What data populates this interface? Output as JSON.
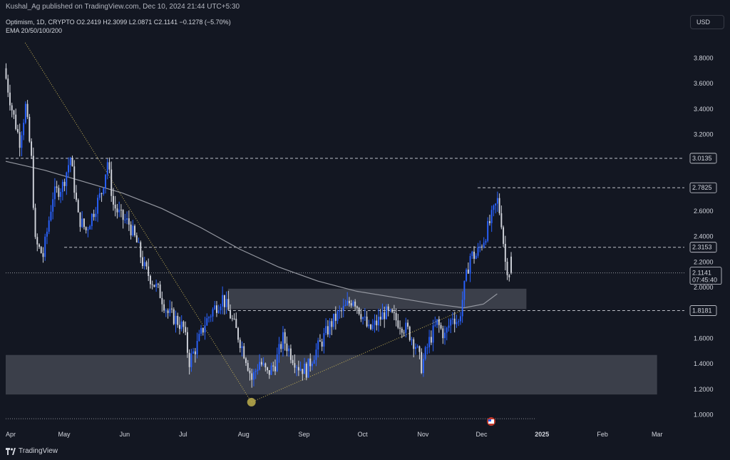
{
  "header": {
    "published": "Kushal_Ag published on TradingView.com, Dec 10, 2024 21:44 UTC+5:30",
    "symbol_line": "Optimism, 1D, CRYPTO  O2.2419  H2.3099  L2.0871  C2.1141  −0.1278 (−5.70%)",
    "indicator_line": "EMA 20/50/100/200",
    "currency": "USD"
  },
  "footer": {
    "brand": "TradingView"
  },
  "colors": {
    "background": "#131722",
    "up_candle": "#2962ff",
    "down_candle": "#d1d4dc",
    "zone": "#434651",
    "ema": "#9598a1",
    "trendline": "#c9b458"
  },
  "chart_data": {
    "type": "candlestick",
    "symbol": "Optimism",
    "interval": "1D",
    "ylim": [
      0.92,
      3.92
    ],
    "yticks": [
      {
        "v": 3.8,
        "label": "3.8000"
      },
      {
        "v": 3.6,
        "label": "3.6000"
      },
      {
        "v": 3.4,
        "label": "3.4000"
      },
      {
        "v": 3.2,
        "label": "3.2000"
      },
      {
        "v": 2.6,
        "label": "2.6000"
      },
      {
        "v": 2.4,
        "label": "2.4000"
      },
      {
        "v": 2.2,
        "label": "2.2000"
      },
      {
        "v": 2.0,
        "label": "2.0000"
      },
      {
        "v": 1.6,
        "label": "1.6000"
      },
      {
        "v": 1.4,
        "label": "1.4000"
      },
      {
        "v": 1.2,
        "label": "1.2000"
      },
      {
        "v": 1.0,
        "label": "1.0000"
      }
    ],
    "xticks": [
      {
        "d": 0,
        "label": "Apr"
      },
      {
        "d": 30,
        "label": "May"
      },
      {
        "d": 61,
        "label": "Jun"
      },
      {
        "d": 91,
        "label": "Jul"
      },
      {
        "d": 122,
        "label": "Aug"
      },
      {
        "d": 153,
        "label": "Sep"
      },
      {
        "d": 183,
        "label": "Oct"
      },
      {
        "d": 214,
        "label": "Nov"
      },
      {
        "d": 244,
        "label": "Dec"
      },
      {
        "d": 275,
        "label": "2025"
      },
      {
        "d": 306,
        "label": "Feb"
      },
      {
        "d": 334,
        "label": "Mar"
      }
    ],
    "xlim_days": [
      0,
      348
    ],
    "levels": [
      {
        "v": 3.0135,
        "label": "3.0135",
        "from_day": 0
      },
      {
        "v": 2.7825,
        "label": "2.7825",
        "from_day": 242
      },
      {
        "v": 2.3153,
        "label": "2.3153",
        "from_day": 30
      },
      {
        "v": 1.8181,
        "label": "1.8181",
        "from_day": 114
      },
      {
        "v": 0.97,
        "from_day": 0,
        "to_day": 272,
        "style": "dotted"
      }
    ],
    "price_label": {
      "v": 2.1141,
      "label": "2.1141",
      "countdown": "07:45:40"
    },
    "zones": [
      {
        "from_day": 114,
        "to_day": 267,
        "low": 1.83,
        "high": 1.99
      },
      {
        "from_day": 0,
        "to_day": 334,
        "low": 1.16,
        "high": 1.47
      }
    ],
    "trendlines": [
      {
        "d1": 10,
        "v1": 3.92,
        "d2": 126,
        "v2": 1.1,
        "style": "dotted"
      },
      {
        "d1": 126,
        "v1": 1.1,
        "d2": 234,
        "v2": 1.82,
        "style": "dotted"
      }
    ],
    "marker": {
      "day": 126,
      "v": 1.1
    },
    "ema_anchor_points": [
      [
        0,
        2.99
      ],
      [
        20,
        2.92
      ],
      [
        40,
        2.83
      ],
      [
        60,
        2.74
      ],
      [
        80,
        2.62
      ],
      [
        100,
        2.47
      ],
      [
        120,
        2.3
      ],
      [
        140,
        2.16
      ],
      [
        160,
        2.05
      ],
      [
        180,
        1.97
      ],
      [
        200,
        1.92
      ],
      [
        220,
        1.87
      ],
      [
        235,
        1.84
      ],
      [
        245,
        1.87
      ],
      [
        252,
        1.95
      ]
    ],
    "price_anchor_points": [
      [
        0,
        3.72
      ],
      [
        4,
        3.4
      ],
      [
        8,
        3.15
      ],
      [
        11,
        3.42
      ],
      [
        14,
        3.0
      ],
      [
        16,
        2.35
      ],
      [
        20,
        2.25
      ],
      [
        25,
        2.72
      ],
      [
        30,
        2.8
      ],
      [
        34,
        3.02
      ],
      [
        38,
        2.55
      ],
      [
        42,
        2.45
      ],
      [
        46,
        2.6
      ],
      [
        50,
        2.75
      ],
      [
        53,
        2.99
      ],
      [
        56,
        2.65
      ],
      [
        60,
        2.55
      ],
      [
        64,
        2.5
      ],
      [
        68,
        2.35
      ],
      [
        72,
        2.15
      ],
      [
        76,
        2.05
      ],
      [
        80,
        1.95
      ],
      [
        84,
        1.8
      ],
      [
        88,
        1.75
      ],
      [
        92,
        1.68
      ],
      [
        95,
        1.42
      ],
      [
        99,
        1.55
      ],
      [
        103,
        1.72
      ],
      [
        107,
        1.82
      ],
      [
        112,
        1.92
      ],
      [
        116,
        1.78
      ],
      [
        120,
        1.62
      ],
      [
        124,
        1.45
      ],
      [
        127,
        1.28
      ],
      [
        131,
        1.42
      ],
      [
        135,
        1.32
      ],
      [
        139,
        1.4
      ],
      [
        143,
        1.6
      ],
      [
        147,
        1.48
      ],
      [
        151,
        1.38
      ],
      [
        155,
        1.35
      ],
      [
        159,
        1.48
      ],
      [
        163,
        1.58
      ],
      [
        167,
        1.7
      ],
      [
        171,
        1.78
      ],
      [
        175,
        1.84
      ],
      [
        179,
        1.92
      ],
      [
        183,
        1.8
      ],
      [
        187,
        1.66
      ],
      [
        191,
        1.72
      ],
      [
        195,
        1.8
      ],
      [
        199,
        1.77
      ],
      [
        203,
        1.72
      ],
      [
        207,
        1.66
      ],
      [
        211,
        1.55
      ],
      [
        214,
        1.38
      ],
      [
        218,
        1.58
      ],
      [
        222,
        1.72
      ],
      [
        226,
        1.62
      ],
      [
        230,
        1.78
      ],
      [
        233,
        1.72
      ],
      [
        236,
        2.0
      ],
      [
        239,
        2.25
      ],
      [
        242,
        2.25
      ],
      [
        246,
        2.38
      ],
      [
        250,
        2.55
      ],
      [
        253,
        2.68
      ],
      [
        255,
        2.52
      ],
      [
        257,
        2.2
      ],
      [
        259,
        2.11
      ]
    ]
  }
}
